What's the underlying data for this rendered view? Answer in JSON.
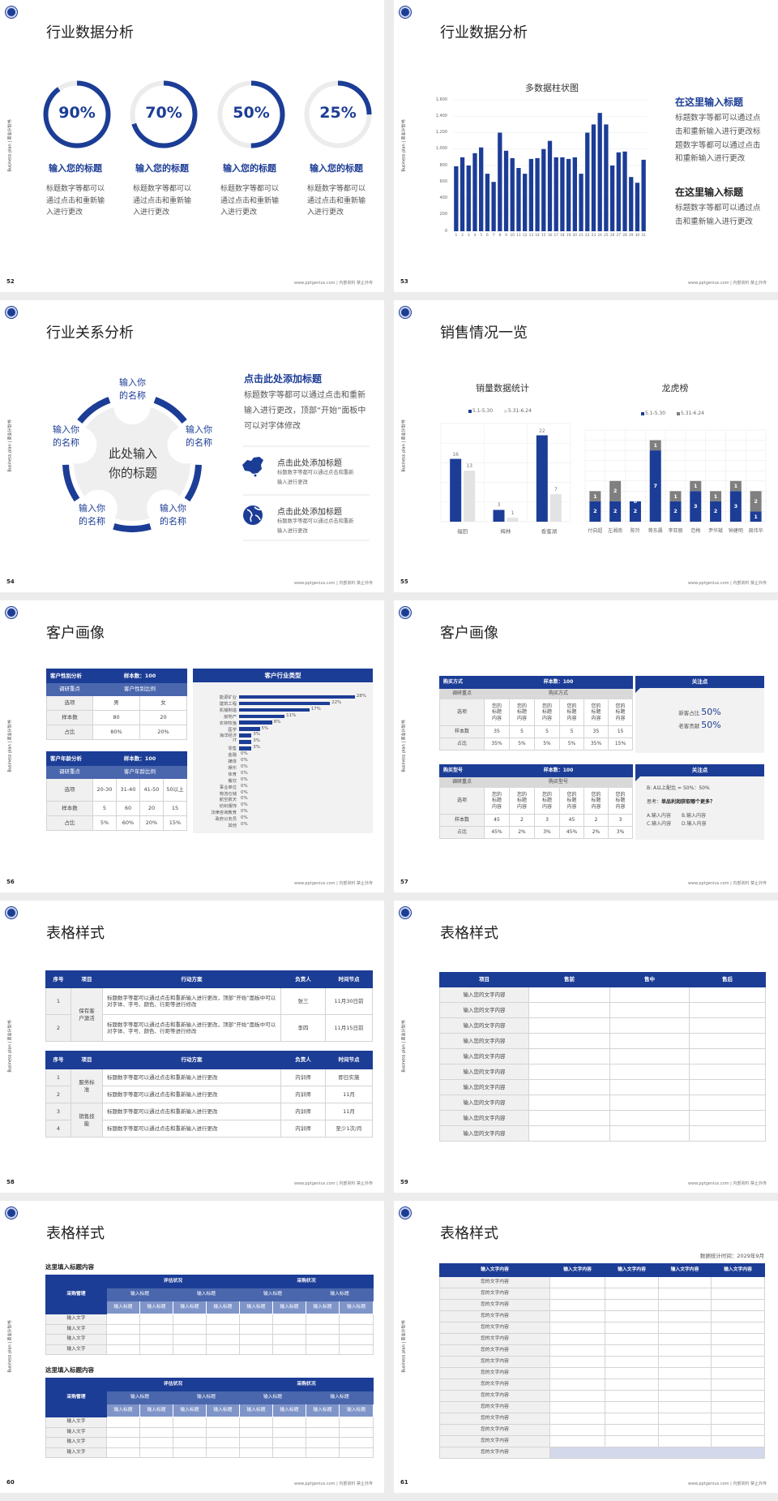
{
  "common": {
    "side_text": "Business plan | 商业计划书",
    "footer": "www.pptgenius.com | 内部资料 禁止外传",
    "logo_icon": "university-seal-icon"
  },
  "colors": {
    "navy": "#1c3d96",
    "gray_bar": "#7f7f7f",
    "light_bar": "#e3e3e3",
    "track": "#ececec",
    "lavender": "#d3d9ea"
  },
  "s52": {
    "page": "52",
    "title": "行业数据分析",
    "items": [
      {
        "value": 90,
        "label": "90%",
        "heading": "输入您的标题",
        "body": "标题数字等都可以通过点击和重新输入进行更改"
      },
      {
        "value": 70,
        "label": "70%",
        "heading": "输入您的标题",
        "body": "标题数字等都可以通过点击和重新输入进行更改"
      },
      {
        "value": 50,
        "label": "50%",
        "heading": "输入您的标题",
        "body": "标题数字等都可以通过点击和重新输入进行更改"
      },
      {
        "value": 25,
        "label": "25%",
        "heading": "输入您的标题",
        "body": "标题数字等都可以通过点击和重新输入进行更改"
      }
    ]
  },
  "s53": {
    "page": "53",
    "title": "行业数据分析",
    "blocks": [
      {
        "heading": "在这里输入标题",
        "body": "标题数字等都可以通过点击和重新输入进行更改标题数字等都可以通过点击和重新输入进行更改"
      },
      {
        "heading": "在这里输入标题",
        "body": "标题数字等都可以通过点击和重新输入进行更改"
      }
    ]
  },
  "s54": {
    "page": "54",
    "title": "行业关系分析",
    "center": "此处输入你的标题",
    "nodes": [
      "输入你的名称",
      "输入你的名称",
      "输入你的名称",
      "输入你的名称",
      "输入你的名称"
    ],
    "heading": "点击此处添加标题",
    "body": "标题数字等都可以通过点击和重新输入进行更改，顶部“开始”面板中可以对字体修改",
    "items": [
      {
        "icon": "china-map-icon",
        "title": "点击此处添加标题",
        "body": "标题数字等都可以通过点击和重新输入进行更改"
      },
      {
        "icon": "globe-icon",
        "title": "点击此处添加标题",
        "body": "标题数字等都可以通过点击和重新输入进行更改"
      }
    ]
  },
  "s55": {
    "page": "55",
    "title": "销售情况一览"
  },
  "s56": {
    "page": "56",
    "title": "客户画像",
    "gender": {
      "title": "客户性别分析",
      "sample": "样本数：100",
      "focus_label": "调研重点",
      "focus": "客户性别比例",
      "rows": [
        [
          "选项",
          "男",
          "女"
        ],
        [
          "样本数",
          "80",
          "20"
        ],
        [
          "占比",
          "80%",
          "20%"
        ]
      ]
    },
    "age": {
      "title": "客户年龄分析",
      "sample": "样本数：100",
      "focus_label": "调研重点",
      "focus": "客户年龄比例",
      "rows": [
        [
          "选项",
          "20-30",
          "31-40",
          "41-50",
          "50以上"
        ],
        [
          "样本数",
          "5",
          "60",
          "20",
          "15"
        ],
        [
          "占比",
          "5%",
          "60%",
          "20%",
          "15%"
        ]
      ]
    }
  },
  "s57": {
    "page": "57",
    "title": "客户画像",
    "method": {
      "title": "购买方式",
      "sample": "样本数：100",
      "focus_label": "调研重点",
      "focus": "购买方式",
      "rows": [
        [
          "选项",
          "您的标题内容",
          "您的标题内容",
          "您的标题内容",
          "您的标题内容",
          "您的标题内容",
          "您的标题内容"
        ],
        [
          "样本数",
          "35",
          "5",
          "5",
          "5",
          "35",
          "15"
        ],
        [
          "占比",
          "35%",
          "5%",
          "5%",
          "5%",
          "35%",
          "15%"
        ]
      ]
    },
    "model": {
      "title": "购买型号",
      "sample": "样本数：100",
      "focus_label": "调研重点",
      "focus": "购买型号",
      "rows": [
        [
          "选项",
          "您的标题内容",
          "您的标题内容",
          "您的标题内容",
          "您的标题内容",
          "您的标题内容",
          "您的标题内容"
        ],
        [
          "样本数",
          "45",
          "2",
          "3",
          "45",
          "2",
          "3"
        ],
        [
          "占比",
          "45%",
          "2%",
          "3%",
          "45%",
          "2%",
          "3%"
        ]
      ]
    },
    "box1": {
      "title": "关注点",
      "lines": [
        {
          "label": "新客占比",
          "value": "50%"
        },
        {
          "label": "老客贡献",
          "value": "50%"
        }
      ]
    },
    "box2": {
      "title": "关注点",
      "ratio": "B: A以上配比 = 50%：50%",
      "question_label": "思考：",
      "question": "单品利润获取哪个更多？",
      "options": [
        "A.输入内容",
        "B.输入内容",
        "C.输入内容",
        "D.输入内容"
      ]
    }
  },
  "s58": {
    "page": "58",
    "title": "表格样式",
    "tables": [
      {
        "header": [
          "序号",
          "项目",
          "行动方案",
          "负责人",
          "时间节点"
        ],
        "groups": [
          {
            "project": "保有客户激活",
            "rows": [
              {
                "no": "1",
                "plan": "标题数字等都可以通过点击和重新输入进行更改，顶部“开始”面板中可以对字体、字号、颜色、行距等进行修改",
                "owner": "张三",
                "deadline": "11月30日前"
              },
              {
                "no": "2",
                "plan": "标题数字等都可以通过点击和重新输入进行更改，顶部“开始”面板中可以对字体、字号、颜色、行距等进行修改",
                "owner": "李四",
                "deadline": "11月15日前"
              }
            ]
          }
        ]
      },
      {
        "header": [
          "序号",
          "项目",
          "行动方案",
          "负责人",
          "时间节点"
        ],
        "groups": [
          {
            "project": "服务标准",
            "rows": [
              {
                "no": "1",
                "plan": "标题数字等都可以通过点击和重新输入进行更改",
                "owner": "内训师",
                "deadline": "即日实施"
              },
              {
                "no": "2",
                "plan": "标题数字等都可以通过点击和重新输入进行更改",
                "owner": "内训师",
                "deadline": "11月"
              }
            ]
          },
          {
            "project": "销售技能",
            "rows": [
              {
                "no": "3",
                "plan": "标题数字等都可以通过点击和重新输入进行更改",
                "owner": "内训师",
                "deadline": "11月"
              },
              {
                "no": "4",
                "plan": "标题数字等都可以通过点击和重新输入进行更改",
                "owner": "内训师",
                "deadline": "至少1次/月"
              }
            ]
          }
        ]
      }
    ]
  },
  "s59": {
    "page": "59",
    "title": "表格样式",
    "header": [
      "项目",
      "售前",
      "售中",
      "售后"
    ],
    "rows": [
      "输入您的文字内容",
      "输入您的文字内容",
      "输入您的文字内容",
      "输入您的文字内容",
      "输入您的文字内容",
      "输入您的文字内容",
      "输入您的文字内容",
      "输入您的文字内容",
      "输入您的文字内容",
      "输入您的文字内容"
    ]
  },
  "s60": {
    "page": "60",
    "title": "表格样式",
    "tables": [
      {
        "subtitle": "这里填入标题内容",
        "corner": "采购管理",
        "groups": [
          "评估状况",
          "采购状况"
        ],
        "subgroups": [
          "输入标题",
          "输入标题",
          "输入标题",
          "输入标题"
        ],
        "columns": [
          "输入标题",
          "输入标题",
          "输入标题",
          "输入标题",
          "输入标题",
          "输入标题",
          "输入标题",
          "输入标题"
        ],
        "rows": [
          "输入文字",
          "输入文字",
          "输入文字",
          "输入文字"
        ]
      },
      {
        "subtitle": "这里填入标题内容",
        "corner": "采购管理",
        "groups": [
          "评估状况",
          "采购状况"
        ],
        "subgroups": [
          "输入标题",
          "输入标题",
          "输入标题",
          "输入标题"
        ],
        "columns": [
          "输入标题",
          "输入标题",
          "输入标题",
          "输入标题",
          "输入标题",
          "输入标题",
          "输入标题",
          "输入标题"
        ],
        "rows": [
          "输入文字",
          "输入文字",
          "输入文字",
          "输入文字"
        ]
      }
    ]
  },
  "s61": {
    "page": "61",
    "title": "表格样式",
    "date": "数据统计时间：2029年9月",
    "header": [
      "输入文字内容",
      "输入文字内容",
      "输入文字内容",
      "输入文字内容",
      "输入文字内容"
    ],
    "rows": [
      "您的文字内容",
      "您的文字内容",
      "您的文字内容",
      "您的文字内容",
      "您的文字内容",
      "您的文字内容",
      "您的文字内容",
      "您的文字内容",
      "您的文字内容",
      "您的文字内容",
      "您的文字内容",
      "您的文字内容",
      "您的文字内容",
      "您的文字内容",
      "您的文字内容",
      "您的文字内容"
    ]
  },
  "chart_data": [
    {
      "type": "bar",
      "title": "多数据柱状图",
      "categories": [
        "1",
        "2",
        "3",
        "4",
        "5",
        "6",
        "7",
        "8",
        "9",
        "10",
        "11",
        "12",
        "13",
        "14",
        "15",
        "16",
        "17",
        "18",
        "19",
        "20",
        "21",
        "22",
        "23",
        "24",
        "25",
        "26",
        "27",
        "28",
        "29",
        "30",
        "31"
      ],
      "values": [
        790,
        900,
        800,
        950,
        1020,
        700,
        600,
        1200,
        980,
        890,
        770,
        700,
        880,
        890,
        1000,
        1100,
        900,
        900,
        880,
        900,
        700,
        1200,
        1300,
        1440,
        1300,
        800,
        960,
        970,
        660,
        590,
        870
      ],
      "yticks": [
        "0",
        "200",
        "400",
        "600",
        "800",
        "1,000",
        "1,200",
        "1,400",
        "1,600"
      ],
      "ylim": [
        0,
        1600
      ],
      "grid": true
    },
    {
      "type": "bar",
      "title": "销量数据统计",
      "categories": [
        "福田",
        "梅林",
        "香蜜湖"
      ],
      "series": [
        {
          "name": "5.1-5.30",
          "values": [
            16,
            3,
            22
          ]
        },
        {
          "name": "5.31-6.24",
          "values": [
            13,
            1,
            7
          ]
        }
      ],
      "ylim": [
        0,
        25
      ],
      "legend": "top",
      "grid": true
    },
    {
      "type": "bar",
      "stacked": true,
      "title": "龙虎榜",
      "categories": [
        "付自超",
        "左湘南",
        "陈玲",
        "蒋东晨",
        "李亚丽",
        "范梅",
        "尹华斌",
        "钟建明",
        "周伟华"
      ],
      "series": [
        {
          "name": "5.1-5.30",
          "values": [
            2,
            2,
            2,
            7,
            2,
            3,
            2,
            3,
            1
          ]
        },
        {
          "name": "5.31-6.24",
          "values": [
            1,
            2,
            0,
            1,
            1,
            1,
            1,
            1,
            2
          ]
        }
      ],
      "ylim": [
        0,
        9
      ],
      "legend": "top",
      "grid": true
    },
    {
      "type": "bar",
      "orientation": "horizontal",
      "title": "客户行业类型",
      "categories": [
        "能源矿业",
        "建筑工程",
        "机械制造",
        "房地产",
        "农林牧渔",
        "医学",
        "海洋经济",
        "IT",
        "零售",
        "金融",
        "媒体",
        "娱乐",
        "体育",
        "餐饮",
        "事业单位",
        "物流仓储",
        "航空航天",
        "纺织服饰",
        "法律咨询教育",
        "政府公务员",
        "其他"
      ],
      "values": [
        28,
        22,
        17,
        11,
        8,
        5,
        3,
        3,
        3,
        0,
        0,
        0,
        0,
        0,
        0,
        0,
        0,
        0,
        0,
        0,
        0
      ],
      "labels": [
        "28%",
        "22%",
        "17%",
        "11%",
        "8%",
        "5%",
        "3%",
        "3%",
        "3%",
        "0%",
        "0%",
        "0%",
        "0%",
        "0%",
        "0%",
        "0%",
        "0%",
        "0%",
        "0%",
        "0%",
        "0%"
      ]
    }
  ]
}
